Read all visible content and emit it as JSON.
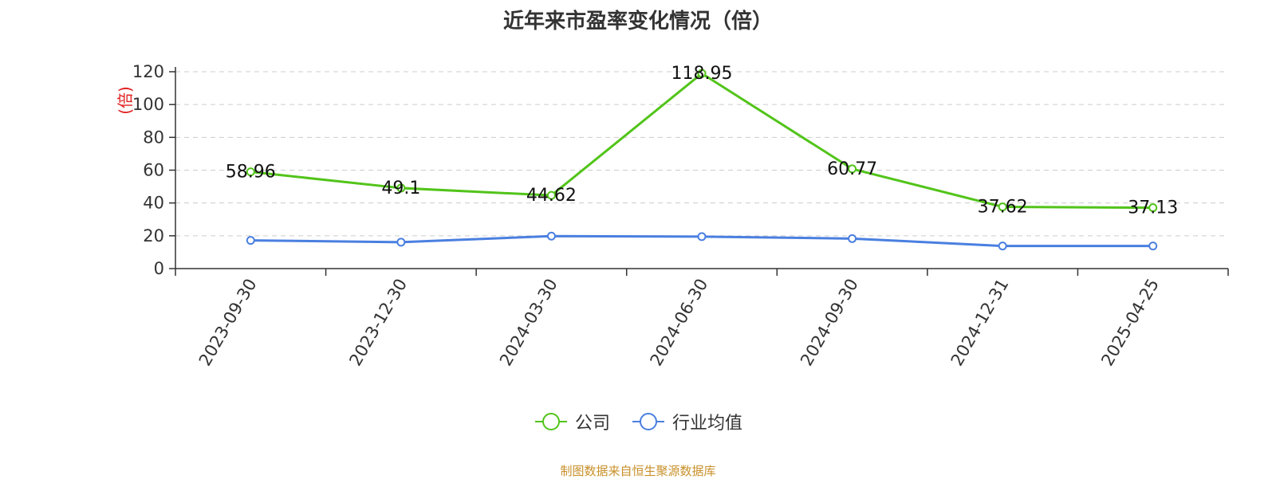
{
  "chart_data": {
    "type": "line",
    "title": "近年来市盈率变化情况（倍）",
    "ylabel": "(倍)",
    "ylim": [
      0,
      120
    ],
    "yticks": [
      0,
      20,
      40,
      60,
      80,
      100,
      120
    ],
    "categories": [
      "2023-09-30",
      "2023-12-30",
      "2024-03-30",
      "2024-06-30",
      "2024-09-30",
      "2024-12-31",
      "2025-04-25"
    ],
    "series": [
      {
        "name": "公司",
        "color": "#52c41a",
        "values": [
          58.96,
          49.1,
          44.62,
          118.95,
          60.77,
          37.62,
          37.13
        ],
        "labels": [
          "58.96",
          "49.1",
          "44.62",
          "118.95",
          "60.77",
          "37.62",
          "37.13"
        ]
      },
      {
        "name": "行业均值",
        "color": "#4a7fe0",
        "values": [
          17.2,
          16.1,
          19.8,
          19.5,
          18.3,
          13.8,
          13.8
        ]
      }
    ],
    "grid": true,
    "legend": "bottom-center"
  },
  "footer": {
    "source": "制图数据来自恒生聚源数据库"
  }
}
